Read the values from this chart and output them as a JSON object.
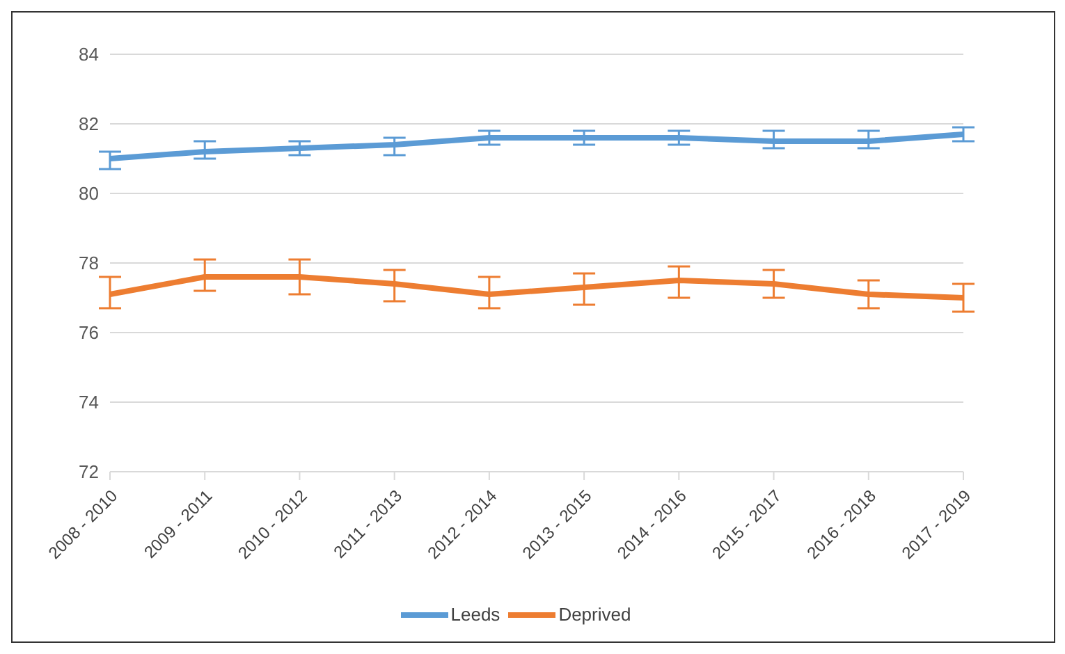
{
  "chart_data": {
    "type": "line",
    "categories": [
      "2008 - 2010",
      "2009 - 2011",
      "2010 - 2012",
      "2011 - 2013",
      "2012 - 2014",
      "2013 - 2015",
      "2014 - 2016",
      "2015 - 2017",
      "2016 - 2018",
      "2017 - 2019"
    ],
    "series": [
      {
        "name": "Leeds",
        "color": "#5b9bd5",
        "values": [
          81.0,
          81.2,
          81.3,
          81.4,
          81.6,
          81.6,
          81.6,
          81.5,
          81.5,
          81.7
        ],
        "errors": [
          [
            80.7,
            81.2
          ],
          [
            81.0,
            81.5
          ],
          [
            81.1,
            81.5
          ],
          [
            81.1,
            81.6
          ],
          [
            81.4,
            81.8
          ],
          [
            81.4,
            81.8
          ],
          [
            81.4,
            81.8
          ],
          [
            81.3,
            81.8
          ],
          [
            81.3,
            81.8
          ],
          [
            81.5,
            81.9
          ]
        ]
      },
      {
        "name": "Deprived",
        "color": "#ed7d31",
        "values": [
          77.1,
          77.6,
          77.6,
          77.4,
          77.1,
          77.3,
          77.5,
          77.4,
          77.1,
          77.0
        ],
        "errors": [
          [
            76.7,
            77.6
          ],
          [
            77.2,
            78.1
          ],
          [
            77.1,
            78.1
          ],
          [
            76.9,
            77.8
          ],
          [
            76.7,
            77.6
          ],
          [
            76.8,
            77.7
          ],
          [
            77.0,
            77.9
          ],
          [
            77.0,
            77.8
          ],
          [
            76.7,
            77.5
          ],
          [
            76.6,
            77.4
          ]
        ]
      }
    ],
    "ylim": [
      72,
      84
    ],
    "yticks": [
      72,
      74,
      76,
      78,
      80,
      82,
      84
    ],
    "grid": "y",
    "legend": "bottom",
    "marker": "none",
    "line_style": "solid"
  }
}
